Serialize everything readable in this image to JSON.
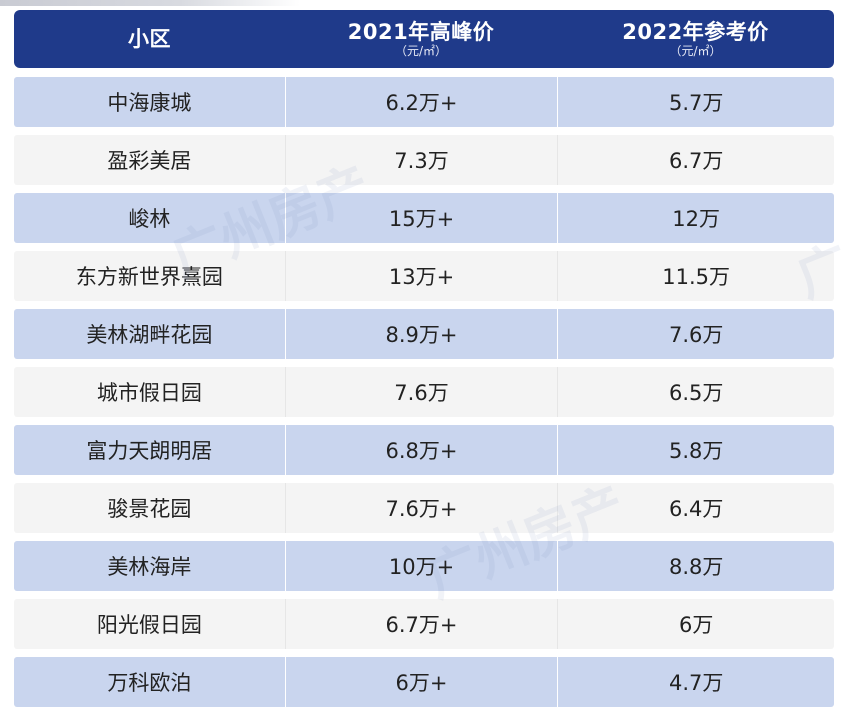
{
  "table": {
    "headers": [
      {
        "title": "小区",
        "unit": ""
      },
      {
        "title": "2021年高峰价",
        "unit": "（元/㎡）"
      },
      {
        "title": "2022年参考价",
        "unit": "（元/㎡）"
      }
    ],
    "rows": [
      [
        "中海康城",
        "6.2万+",
        "5.7万"
      ],
      [
        "盈彩美居",
        "7.3万",
        "6.7万"
      ],
      [
        "峻林",
        "15万+",
        "12万"
      ],
      [
        "东方新世界熹园",
        "13万+",
        "11.5万"
      ],
      [
        "美林湖畔花园",
        "8.9万+",
        "7.6万"
      ],
      [
        "城市假日园",
        "7.6万",
        "6.5万"
      ],
      [
        "富力天朗明居",
        "6.8万+",
        "5.8万"
      ],
      [
        "骏景花园",
        "7.6万+",
        "6.4万"
      ],
      [
        "美林海岸",
        "10万+",
        "8.8万"
      ],
      [
        "阳光假日园",
        "6.7万+",
        "6万"
      ],
      [
        "万科欧泊",
        "6万+",
        "4.7万"
      ]
    ]
  },
  "watermark": {
    "text": "广州房产"
  },
  "colors": {
    "header_bg": "#1f3a8a",
    "row_blue": "#c9d5ee",
    "row_gray": "#f4f4f4"
  }
}
